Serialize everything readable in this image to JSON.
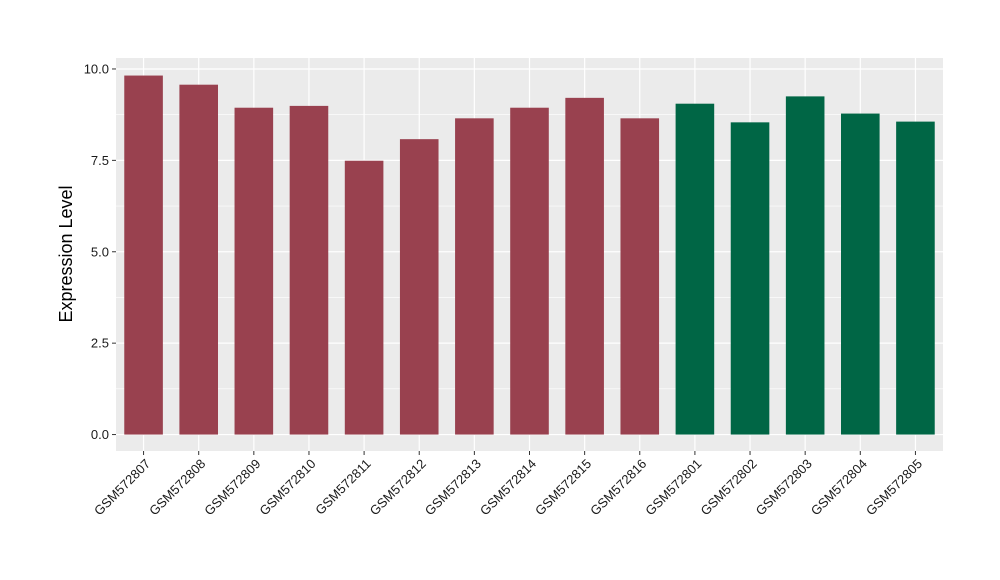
{
  "chart_data": {
    "type": "bar",
    "title": "",
    "xlabel": "",
    "ylabel": "Expression Level",
    "ylim": [
      -0.45,
      10.3
    ],
    "yticks": [
      0.0,
      2.5,
      5.0,
      7.5,
      10.0
    ],
    "ytick_labels": [
      "0.0",
      "2.5",
      "5.0",
      "7.5",
      "10.0"
    ],
    "grid": true,
    "legend": "none",
    "categories": [
      "GSM572807",
      "GSM572808",
      "GSM572809",
      "GSM572810",
      "GSM572811",
      "GSM572812",
      "GSM572813",
      "GSM572814",
      "GSM572815",
      "GSM572816",
      "GSM572801",
      "GSM572802",
      "GSM572803",
      "GSM572804",
      "GSM572805"
    ],
    "values": [
      9.82,
      9.57,
      8.94,
      8.99,
      7.49,
      8.08,
      8.65,
      8.94,
      9.21,
      8.65,
      9.05,
      8.54,
      9.25,
      8.78,
      8.56
    ],
    "bar_colors": [
      "#99414f",
      "#99414f",
      "#99414f",
      "#99414f",
      "#99414f",
      "#99414f",
      "#99414f",
      "#99414f",
      "#99414f",
      "#99414f",
      "#006645",
      "#006645",
      "#006645",
      "#006645",
      "#006645"
    ],
    "panel_background": "#ebebeb",
    "gridline_color": "#ffffff"
  }
}
